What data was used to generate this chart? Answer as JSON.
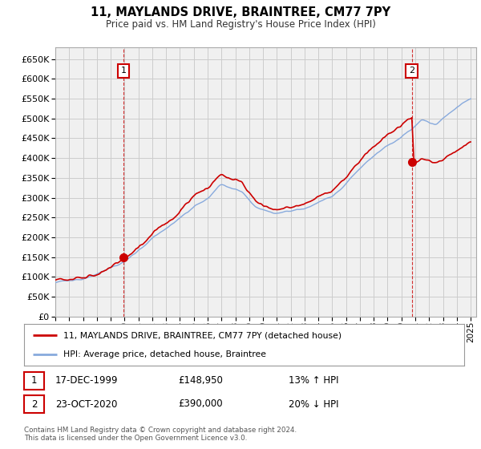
{
  "title": "11, MAYLANDS DRIVE, BRAINTREE, CM77 7PY",
  "subtitle": "Price paid vs. HM Land Registry's House Price Index (HPI)",
  "sale1": {
    "price": 148950,
    "hpi_rel": "13% ↑ HPI",
    "display_date": "17-DEC-1999",
    "display_price": "£148,950"
  },
  "sale2": {
    "price": 390000,
    "hpi_rel": "20% ↓ HPI",
    "display_date": "23-OCT-2020",
    "display_price": "£390,000"
  },
  "legend_line1": "11, MAYLANDS DRIVE, BRAINTREE, CM77 7PY (detached house)",
  "legend_line2": "HPI: Average price, detached house, Braintree",
  "footer": "Contains HM Land Registry data © Crown copyright and database right 2024.\nThis data is licensed under the Open Government Licence v3.0.",
  "ylim": [
    0,
    680000
  ],
  "yticks": [
    0,
    50000,
    100000,
    150000,
    200000,
    250000,
    300000,
    350000,
    400000,
    450000,
    500000,
    550000,
    600000,
    650000
  ],
  "price_line_color": "#cc0000",
  "hpi_line_color": "#88aadd",
  "sale_dot_color": "#cc0000",
  "sale_marker_color": "#cc0000",
  "grid_color": "#cccccc",
  "background_color": "#ffffff",
  "plot_bg_color": "#f0f0f0"
}
